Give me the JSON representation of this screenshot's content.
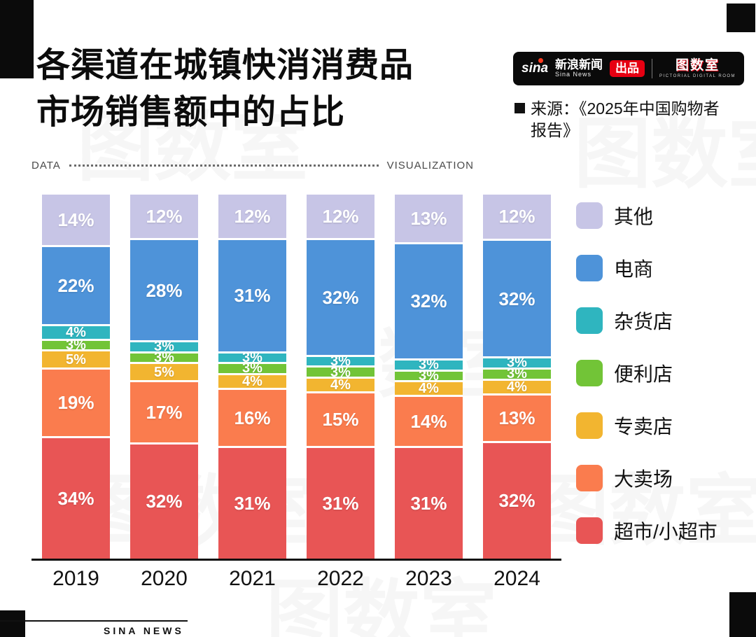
{
  "header": {
    "title_line1": "各渠道在城镇快消消费品",
    "title_line2": "市场销售额中的占比",
    "brand": {
      "sina_logo": "sina",
      "sina_name": "新浪新闻",
      "sina_sub": "Sina News",
      "badge": "出品",
      "room_logo": "图数室",
      "room_sub": "PICTORIAL DIGITAL ROOM"
    },
    "source_line1": "来源：《2025年中国购物者",
    "source_line2": "报告》"
  },
  "divider": {
    "left": "DATA",
    "right": "VISUALIZATION"
  },
  "chart_data": {
    "type": "bar",
    "stacked": true,
    "title": "各渠道在城镇快消消费品市场销售额中的占比",
    "categories": [
      "2019",
      "2020",
      "2021",
      "2022",
      "2023",
      "2024"
    ],
    "series": [
      {
        "name": "其他",
        "color": "#c7c5e6",
        "values": [
          14,
          12,
          12,
          12,
          13,
          12
        ]
      },
      {
        "name": "电商",
        "color": "#4e93d9",
        "values": [
          22,
          28,
          31,
          32,
          32,
          32
        ]
      },
      {
        "name": "杂货店",
        "color": "#2fb5bf",
        "values": [
          4,
          3,
          3,
          3,
          3,
          3
        ]
      },
      {
        "name": "便利店",
        "color": "#72c437",
        "values": [
          3,
          3,
          3,
          3,
          3,
          3
        ]
      },
      {
        "name": "专卖店",
        "color": "#f2b530",
        "values": [
          5,
          5,
          4,
          4,
          4,
          4
        ]
      },
      {
        "name": "大卖场",
        "color": "#fa7c4e",
        "values": [
          19,
          17,
          16,
          15,
          14,
          13
        ]
      },
      {
        "name": "超市/小超市",
        "color": "#e85555",
        "values": [
          34,
          32,
          31,
          31,
          31,
          32
        ]
      }
    ],
    "value_suffix": "%",
    "ylim": [
      0,
      100
    ],
    "legend_position": "right",
    "grid": false
  },
  "footer": {
    "label": "SINA NEWS"
  },
  "watermark": "图数室"
}
